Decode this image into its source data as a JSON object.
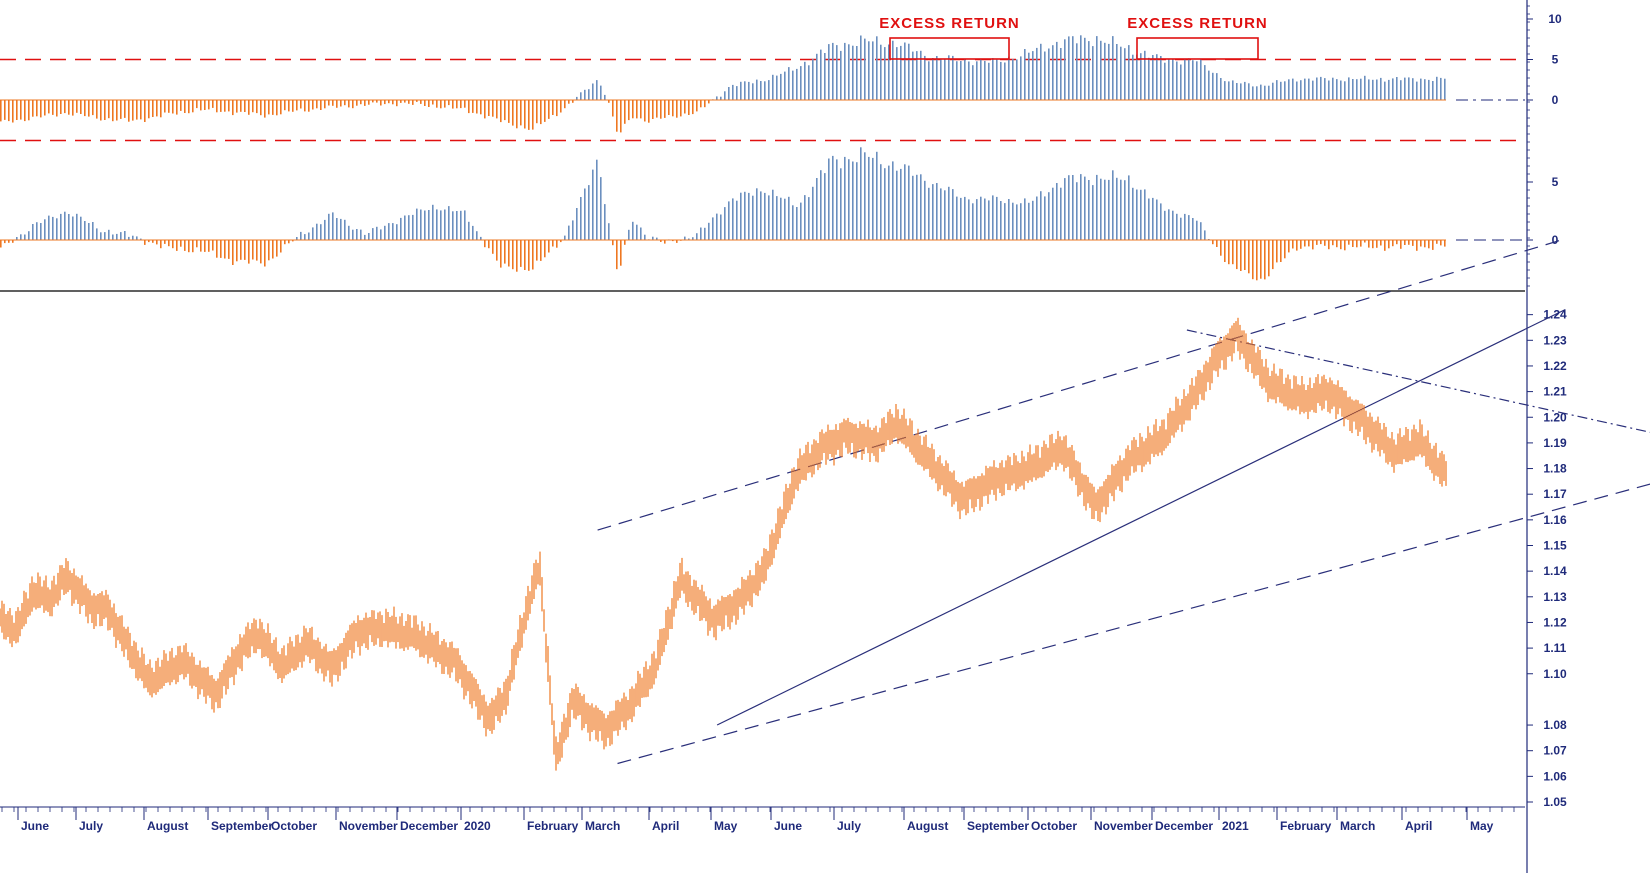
{
  "chart_data": {
    "type": "bar",
    "colors": {
      "positive": "#6b8fbf",
      "negative": "#ee7722",
      "price": "#ee7722",
      "trendline": "#2a2f7a",
      "threshold": "#e01010",
      "axis_text": "#1f2a7a"
    },
    "x_axis": {
      "labels": [
        "June",
        "July",
        "August",
        "September",
        "October",
        "November",
        "December",
        "2020",
        "February",
        "March",
        "April",
        "May",
        "June",
        "July",
        "August",
        "September",
        "October",
        "November",
        "December",
        "2021",
        "February",
        "March",
        "April",
        "May"
      ]
    },
    "panels": [
      {
        "id": "excess-return-oscillator",
        "type": "bar",
        "y_ticks": [
          10,
          5,
          0
        ],
        "ylim": [
          -5.2,
          12
        ],
        "threshold_lines": [
          5,
          -5
        ],
        "annotations": [
          {
            "text": "EXCESS RETURN",
            "x_range": [
              "August",
              "September"
            ]
          },
          {
            "text": "EXCESS RETURN",
            "x_range": [
              "December",
              "2021"
            ]
          }
        ],
        "x": [
          0,
          20,
          40,
          60,
          80,
          100,
          120,
          140,
          160,
          180,
          200,
          220,
          240,
          260,
          280,
          300,
          320,
          340,
          350,
          360,
          365,
          372,
          380,
          390,
          400,
          420,
          440,
          460,
          480,
          500,
          520,
          540,
          560,
          580,
          600,
          620,
          640,
          660,
          680,
          700,
          720,
          740,
          760,
          780
        ],
        "values": [
          -2.8,
          -2.2,
          -1.6,
          -2.3,
          -2.6,
          -1.8,
          -1.2,
          -1.5,
          -1.9,
          -1.3,
          -0.9,
          -0.6,
          -0.4,
          -0.7,
          -1.2,
          -2.5,
          -3.7,
          -1.0,
          0.8,
          2.6,
          0.4,
          -4.5,
          -2.0,
          -2.6,
          -2.2,
          -1.5,
          1.8,
          2.5,
          4.0,
          6.6,
          7.3,
          7.0,
          5.3,
          4.9,
          4.7,
          5.9,
          7.3,
          7.6,
          6.3,
          5.0,
          4.9,
          2.2,
          1.8,
          2.6
        ]
      },
      {
        "id": "momentum-histogram",
        "type": "bar",
        "y_ticks": [
          5,
          0
        ],
        "ylim": [
          -3.8,
          8.5
        ],
        "x": [
          0,
          20,
          40,
          60,
          80,
          100,
          120,
          140,
          160,
          180,
          200,
          220,
          240,
          260,
          280,
          300,
          320,
          340,
          350,
          360,
          365,
          372,
          380,
          390,
          400,
          420,
          440,
          460,
          480,
          500,
          520,
          540,
          560,
          580,
          600,
          620,
          640,
          660,
          680,
          700,
          720,
          740,
          760,
          780
        ],
        "values": [
          -0.8,
          1.3,
          2.5,
          0.9,
          0.3,
          -0.7,
          -0.9,
          -1.8,
          -2.0,
          0.4,
          2.2,
          0.5,
          1.8,
          2.9,
          2.3,
          -2.2,
          -2.6,
          0.4,
          3.6,
          7.2,
          2.3,
          -3.2,
          1.9,
          0.3,
          -0.3,
          0.5,
          3.5,
          4.4,
          2.9,
          6.8,
          7.3,
          6.4,
          5.0,
          3.6,
          3.5,
          3.2,
          5.2,
          5.4,
          5.2,
          2.8,
          1.8,
          -2.2,
          -3.5,
          -0.6
        ]
      },
      {
        "id": "price",
        "type": "line",
        "y_ticks": [
          1.24,
          1.23,
          1.22,
          1.21,
          1.2,
          1.19,
          1.18,
          1.17,
          1.16,
          1.15,
          1.14,
          1.13,
          1.12,
          1.11,
          1.1,
          1.08,
          1.07,
          1.06,
          1.05
        ],
        "ylim": [
          1.045,
          1.245
        ],
        "x": [
          0,
          10,
          20,
          30,
          40,
          55,
          65,
          75,
          90,
          110,
          130,
          145,
          155,
          170,
          185,
          200,
          215,
          230,
          250,
          275,
          295,
          305,
          318,
          325,
          335,
          345,
          355,
          365,
          380,
          395,
          410,
          430,
          445,
          460,
          480,
          495,
          510,
          528,
          540,
          560,
          580,
          600,
          620,
          640,
          660,
          680,
          700,
          720,
          732,
          745,
          765,
          785,
          800,
          820,
          840,
          855,
          870,
          880
        ],
        "values": [
          1.121,
          1.117,
          1.132,
          1.129,
          1.138,
          1.126,
          1.125,
          1.113,
          1.097,
          1.105,
          1.092,
          1.109,
          1.116,
          1.103,
          1.112,
          1.102,
          1.116,
          1.118,
          1.115,
          1.104,
          1.082,
          1.092,
          1.127,
          1.142,
          1.066,
          1.09,
          1.083,
          1.078,
          1.088,
          1.103,
          1.137,
          1.121,
          1.128,
          1.14,
          1.178,
          1.188,
          1.193,
          1.19,
          1.198,
          1.183,
          1.168,
          1.176,
          1.18,
          1.188,
          1.165,
          1.183,
          1.192,
          1.209,
          1.222,
          1.232,
          1.213,
          1.207,
          1.21,
          1.199,
          1.186,
          1.191,
          1.178,
          1.187
        ],
        "trendlines": [
          {
            "style": "dashed",
            "from": [
              360,
              1.156
            ],
            "to": [
              940,
              1.269
            ]
          },
          {
            "style": "dashed",
            "from": [
              372,
              1.065
            ],
            "to": [
              1000,
              1.175
            ]
          },
          {
            "style": "solid",
            "from": [
              432,
              1.08
            ],
            "to": [
              943,
              1.242
            ]
          },
          {
            "style": "dashdot",
            "from": [
              715,
              1.234
            ],
            "to": [
              995,
              1.194
            ]
          }
        ]
      }
    ]
  }
}
